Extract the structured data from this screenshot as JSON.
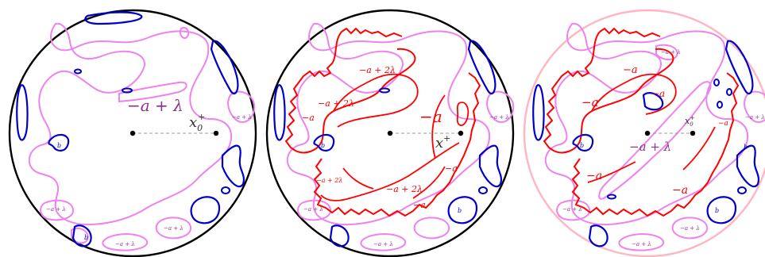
{
  "colors": {
    "violet": "#ee82ee",
    "violet_text": "#8b2f8b",
    "blue": "#0000cc",
    "red": "#ff0000",
    "black": "#000000",
    "pink_disk": "#ffb6c1",
    "dash": "#999999"
  },
  "panels": [
    {
      "main_label": "−a + λ",
      "point_label": "x",
      "point_sub": "0",
      "point_sup": "+",
      "small_labels": [
        "−a + λ",
        "−a + λ",
        "−a + λ",
        "−a + λ",
        "b",
        "b"
      ]
    },
    {
      "main_label": "−a",
      "point_label": "x",
      "point_sup": "+",
      "inner_labels": [
        "−a + 2λ",
        "−a + 2λ",
        "−a",
        "−a + 2λ",
        "−a",
        "−a + 2λ",
        "−a"
      ],
      "small_labels": [
        "−a + λ",
        "−a + λ",
        "−a + λ",
        "b",
        "b"
      ]
    },
    {
      "main_label": "−a + λ",
      "point_label": "x",
      "point_sub": "0",
      "point_sup": "+",
      "inner_labels": [
        "−a",
        "−a",
        "−a",
        "−a",
        "−a",
        "−a"
      ],
      "small_labels": [
        "−a + λ",
        "−a + λ",
        "−a + λ",
        "−a + λ",
        "−a + λ",
        "b",
        "b",
        "b"
      ]
    }
  ]
}
